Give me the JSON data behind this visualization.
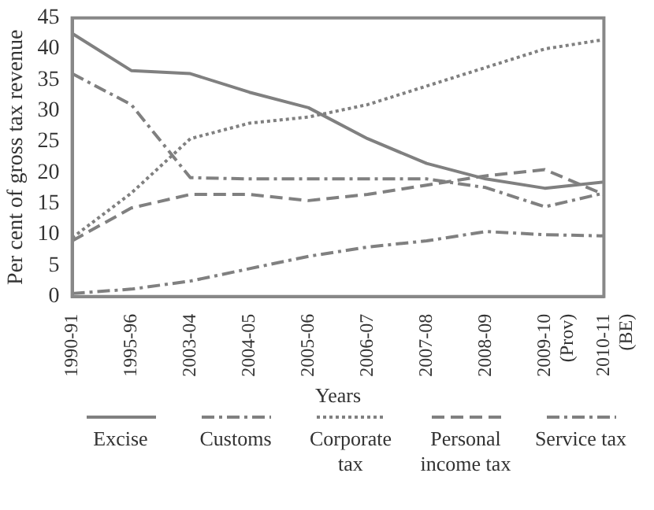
{
  "chart_data": {
    "type": "line",
    "xlabel": "Years",
    "ylabel": "Per cent of gross tax revenue",
    "categories": [
      "1990-91",
      "1995-96",
      "2003-04",
      "2004-05",
      "2005-06",
      "2006-07",
      "2007-08",
      "2008-09",
      "2009-10\n(Prov)",
      "2010-11\n(BE)"
    ],
    "series": [
      {
        "name": "Excise",
        "color": "#808080",
        "line_style": "solid",
        "values": [
          42.5,
          36.5,
          36,
          33,
          30.5,
          25.5,
          21.5,
          19,
          17.5,
          18.5
        ]
      },
      {
        "name": "Customs",
        "color": "#808080",
        "line_style": "dashdot",
        "values": [
          36,
          31,
          19.2,
          19,
          19,
          19,
          19,
          17.6,
          14.5,
          16.7
        ]
      },
      {
        "name": "Corporate tax",
        "color": "#808080",
        "line_style": "dotted",
        "values": [
          9.5,
          16.7,
          25.5,
          28,
          29,
          31,
          34,
          37,
          40,
          41.5
        ]
      },
      {
        "name": "Personal income tax",
        "color": "#808080",
        "line_style": "dashed",
        "values": [
          9,
          14.3,
          16.5,
          16.5,
          15.5,
          16.5,
          18,
          19.5,
          20.5,
          16.5
        ]
      },
      {
        "name": "Service tax",
        "color": "#808080",
        "line_style": "dashdot",
        "values": [
          0.5,
          1.2,
          2.5,
          4.5,
          6.5,
          8,
          9,
          10.5,
          10,
          9.8
        ]
      }
    ],
    "ylim": [
      0,
      45
    ],
    "yticks": [
      0,
      5,
      10,
      15,
      20,
      25,
      30,
      35,
      40,
      45
    ],
    "grid": false,
    "legend": "bottom",
    "marker": "none"
  }
}
